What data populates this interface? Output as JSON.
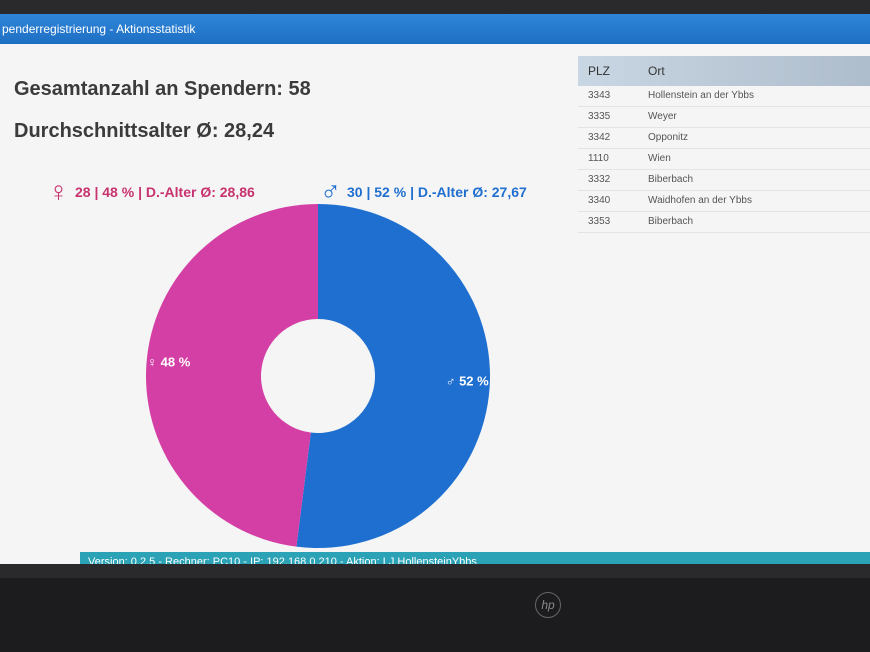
{
  "window": {
    "title": "penderregistrierung - Aktionsstatistik"
  },
  "summary": {
    "total_label": "Gesamtanzahl an Spendern: 58",
    "avg_age_label": "Durchschnittsalter Ø: 28,24",
    "female": {
      "symbol": "♀",
      "text": "28 | 48 % | D.-Alter Ø: 28,86",
      "color": "#c8336f"
    },
    "male": {
      "symbol": "♂",
      "text": "30 | 52 % | D.-Alter Ø: 27,67",
      "color": "#1f6fd0"
    }
  },
  "table": {
    "headers": [
      "PLZ",
      "Ort"
    ],
    "rows": [
      [
        "3343",
        "Hollenstein an der Ybbs"
      ],
      [
        "3335",
        "Weyer"
      ],
      [
        "3342",
        "Opponitz"
      ],
      [
        "1110",
        "Wien"
      ],
      [
        "3332",
        "Biberbach"
      ],
      [
        "3340",
        "Waidhofen an der Ybbs"
      ],
      [
        "3353",
        "Biberbach"
      ]
    ]
  },
  "footer": {
    "text": "Version: 0.2.5 - Rechner: PC10 - IP: 192.168.0.210 - Aktion: LJ HollensteinYbbs"
  },
  "chart_data": {
    "type": "pie",
    "donut": true,
    "slices": [
      {
        "label": "♂ 52 %",
        "value": 52,
        "color": "#1f6fd0"
      },
      {
        "label": "♀ 48 %",
        "value": 48,
        "color": "#d43fa6"
      }
    ]
  }
}
